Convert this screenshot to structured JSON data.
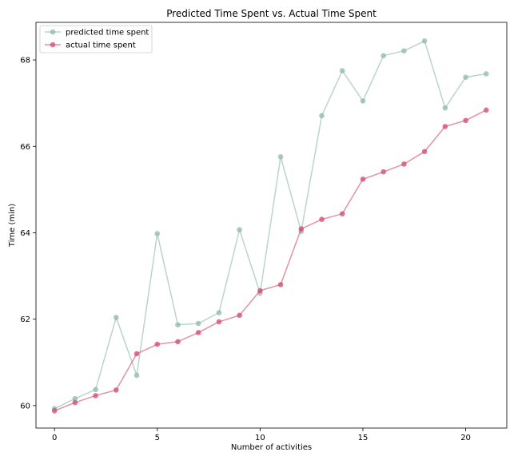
{
  "chart_data": {
    "type": "line",
    "title": "Predicted Time Spent vs. Actual Time Spent",
    "xlabel": "Number of activities",
    "ylabel": "Time (min)",
    "xlim": [
      -0.9,
      22.0
    ],
    "ylim": [
      59.48,
      68.87
    ],
    "xticks": [
      0,
      5,
      10,
      15,
      20
    ],
    "yticks": [
      60,
      62,
      64,
      66,
      68
    ],
    "grid": false,
    "legend": "top-left",
    "x": [
      0,
      1,
      2,
      3,
      4,
      5,
      6,
      7,
      8,
      9,
      10,
      11,
      12,
      13,
      14,
      15,
      16,
      17,
      18,
      19,
      20,
      21
    ],
    "series": [
      {
        "name": "predicted time spent",
        "color": "#8fb8ad",
        "values": [
          59.93,
          60.16,
          60.37,
          62.04,
          60.7,
          63.98,
          61.87,
          61.9,
          62.15,
          64.07,
          62.6,
          65.76,
          64.03,
          66.71,
          67.75,
          67.05,
          68.1,
          68.21,
          68.44,
          66.89,
          67.6,
          67.68
        ]
      },
      {
        "name": "actual time spent",
        "color": "#d24a6b",
        "values": [
          59.88,
          60.07,
          60.23,
          60.36,
          61.2,
          61.42,
          61.48,
          61.69,
          61.94,
          62.09,
          62.66,
          62.8,
          64.09,
          64.31,
          64.44,
          65.24,
          65.41,
          65.59,
          65.88,
          66.46,
          66.6,
          66.84
        ]
      }
    ]
  }
}
